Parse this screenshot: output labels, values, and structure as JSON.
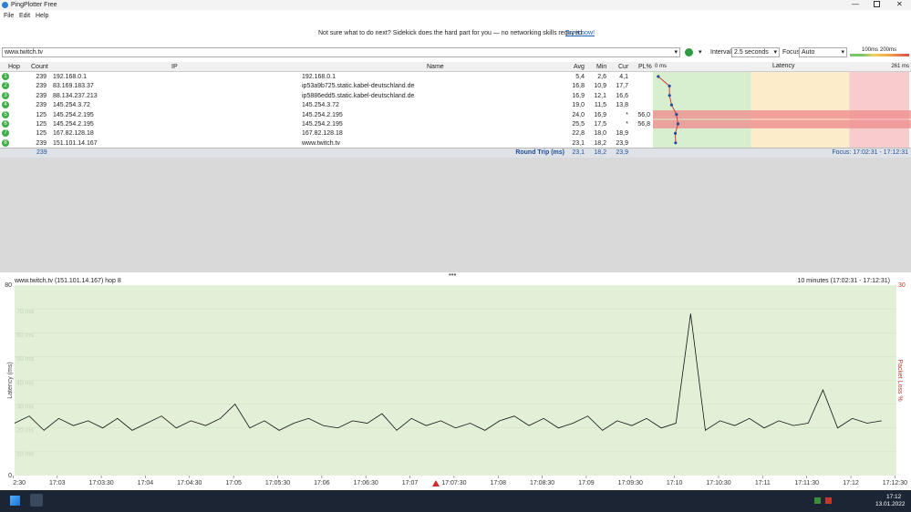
{
  "window": {
    "title": "PingPlotter Free",
    "menu": [
      "File",
      "Edit",
      "Help"
    ]
  },
  "banner": {
    "text": "Not sure what to do next? Sidekick does the hard part for you — no networking skills required.",
    "link": "Try it now!"
  },
  "toolbar": {
    "target": "www.twitch.tv",
    "interval_label": "Interval",
    "interval": "2.5 seconds",
    "focus_label": "Focus",
    "focus": "Auto",
    "thresholds": [
      {
        "value": 100,
        "label": "100ms"
      },
      {
        "value": 200,
        "label": "200ms"
      }
    ]
  },
  "table": {
    "columns": {
      "hop": "Hop",
      "count": "Count",
      "ip": "IP",
      "name": "Name",
      "avg": "Avg",
      "min": "Min",
      "cur": "Cur",
      "pl": "PL%",
      "latency": "Latency"
    },
    "latency_scale": [
      {
        "value": 0,
        "label": "0 ms"
      },
      {
        "value": 261,
        "label": "261 ms"
      }
    ],
    "rows": [
      {
        "hop": "1",
        "count": "239",
        "ip": "192.168.0.1",
        "name": "192.168.0.1",
        "avg": "5,4",
        "min": "2,6",
        "cur": "4,1"
      },
      {
        "hop": "2",
        "count": "239",
        "ip": "83.169.183.37",
        "name": "ip53a9b725.static.kabel-deutschland.de",
        "avg": "16,8",
        "min": "10,9",
        "cur": "17,7"
      },
      {
        "hop": "3",
        "count": "239",
        "ip": "88.134.237.213",
        "name": "ip5886edd5.static.kabel-deutschland.de",
        "avg": "16,9",
        "min": "12,1",
        "cur": "16,6"
      },
      {
        "hop": "4",
        "count": "239",
        "ip": "145.254.3.72",
        "name": "145.254.3.72",
        "avg": "19,0",
        "min": "11,5",
        "cur": "13,8"
      },
      {
        "hop": "5",
        "count": "125",
        "ip": "145.254.2.195",
        "name": "145.254.2.195",
        "avg": "24,0",
        "min": "16,9",
        "cur": "*",
        "pl": "56,0"
      },
      {
        "hop": "6",
        "count": "125",
        "ip": "145.254.2.195",
        "name": "145.254.2.195",
        "avg": "25,5",
        "min": "17,5",
        "cur": "*",
        "pl": "56,8"
      },
      {
        "hop": "7",
        "count": "125",
        "ip": "167.82.128.18",
        "name": "167.82.128.18",
        "avg": "22,8",
        "min": "18,0",
        "cur": "18,9"
      },
      {
        "hop": "8",
        "count": "239",
        "ip": "151.101.14.167",
        "name": "www.twitch.tv",
        "avg": "23,1",
        "min": "18,2",
        "cur": "23,9"
      }
    ],
    "summary": {
      "count": "239",
      "label": "Round Trip (ms)",
      "avg": "23,1",
      "min": "18,2",
      "cur": "23,9",
      "focus": "Focus: 17:02:31 - 17:12:31"
    }
  },
  "graph": {
    "title": "www.twitch.tv (151.101.14.167) hop 8",
    "range": "10 minutes (17:02:31 - 17:12:31)",
    "ylabel": "Latency (ms)",
    "y2label": "Packet Loss %",
    "ylim": [
      0,
      80
    ],
    "yticks": [
      0,
      80
    ],
    "gridlines": [
      {
        "value": 10,
        "label": "10 ms"
      },
      {
        "value": 20,
        "label": "20 ms"
      },
      {
        "value": 30,
        "label": "30 ms"
      },
      {
        "value": 40,
        "label": "40 ms"
      },
      {
        "value": 50,
        "label": "50 ms"
      },
      {
        "value": 60,
        "label": "60 ms"
      },
      {
        "value": 70,
        "label": "70 ms"
      }
    ],
    "y2lim": [
      0,
      30
    ],
    "y2ticks": [
      30
    ],
    "xlim": [
      151,
      751
    ],
    "xticks": [
      {
        "value": 150,
        "label": "17:02:30"
      },
      {
        "value": 180,
        "label": "17:03"
      },
      {
        "value": 210,
        "label": "17:03:30"
      },
      {
        "value": 240,
        "label": "17:04"
      },
      {
        "value": 270,
        "label": "17:04:30"
      },
      {
        "value": 300,
        "label": "17:05"
      },
      {
        "value": 330,
        "label": "17:05:30"
      },
      {
        "value": 360,
        "label": "17:06"
      },
      {
        "value": 390,
        "label": "17:06:30"
      },
      {
        "value": 420,
        "label": "17:07"
      },
      {
        "value": 450,
        "label": "17:07:30"
      },
      {
        "value": 480,
        "label": "17:08"
      },
      {
        "value": 510,
        "label": "17:08:30"
      },
      {
        "value": 540,
        "label": "17:09"
      },
      {
        "value": 570,
        "label": "17:09:30"
      },
      {
        "value": 600,
        "label": "17:10"
      },
      {
        "value": 630,
        "label": "17:10:30"
      },
      {
        "value": 660,
        "label": "17:11"
      },
      {
        "value": 690,
        "label": "17:11:30"
      },
      {
        "value": 720,
        "label": "17:12"
      },
      {
        "value": 750,
        "label": "17:12:30"
      }
    ],
    "x": [
      151,
      161,
      171,
      181,
      191,
      201,
      211,
      221,
      231,
      241,
      251,
      261,
      271,
      281,
      291,
      301,
      311,
      321,
      331,
      341,
      351,
      361,
      371,
      381,
      391,
      401,
      411,
      421,
      431,
      441,
      451,
      461,
      471,
      481,
      491,
      501,
      511,
      521,
      531,
      541,
      551,
      561,
      571,
      581,
      591,
      601,
      611,
      621,
      631,
      641,
      651,
      661,
      671,
      681,
      691,
      701,
      711,
      721,
      731,
      741
    ],
    "values": [
      22,
      25,
      19,
      24,
      21,
      23,
      20,
      24,
      19,
      22,
      25,
      20,
      23,
      21,
      24,
      30,
      20,
      23,
      19,
      22,
      24,
      21,
      20,
      23,
      22,
      26,
      19,
      24,
      21,
      23,
      20,
      22,
      19,
      23,
      25,
      21,
      24,
      20,
      22,
      25,
      19,
      23,
      21,
      24,
      20,
      22,
      68,
      19,
      23,
      21,
      24,
      20,
      23,
      21,
      22,
      36,
      20,
      24,
      22,
      23
    ]
  },
  "taskbar": {
    "time": "17:12",
    "date": "13.01.2022"
  }
}
